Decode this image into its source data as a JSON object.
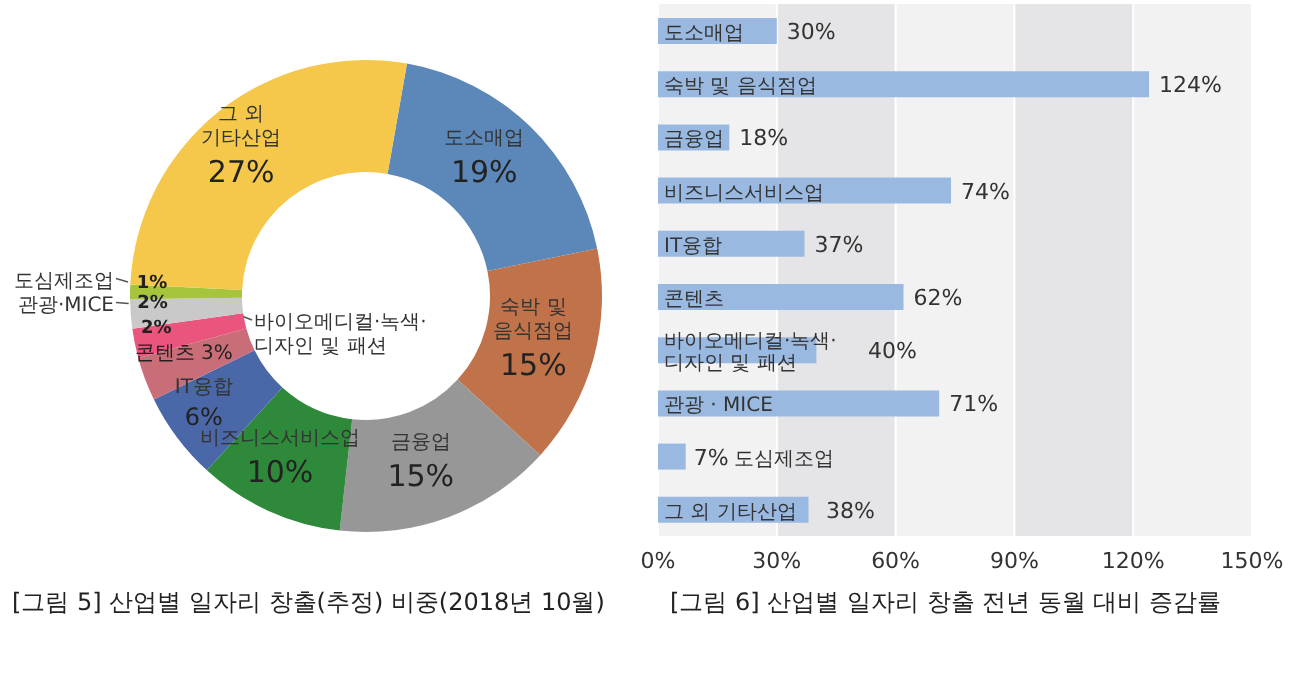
{
  "chart_data": [
    {
      "type": "donut",
      "title": "[그림 5]  산업별 일자리 창출(추정) 비중(2018년 10월)",
      "categories": [
        "도소매업",
        "숙박 및 음식점업",
        "금융업",
        "비즈니스서비스업",
        "IT융합",
        "콘텐츠",
        "바이오메디컬·녹색·디자인 및 패션",
        "관광·MICE",
        "도심제조업",
        "그 외 기타산업"
      ],
      "values": [
        19,
        15,
        15,
        10,
        6,
        3,
        2,
        2,
        1,
        27
      ],
      "value_labels": [
        "19%",
        "15%",
        "15%",
        "10%",
        "6%",
        "3%",
        "2%",
        "2%",
        "1%",
        "27%"
      ],
      "colors": [
        "#5b87b9",
        "#c0734a",
        "#979797",
        "#2e8a3a",
        "#4a67a8",
        "#c96e78",
        "#e9557d",
        "#c9c9c9",
        "#a6c43c",
        "#f5c84b"
      ],
      "legend": false
    },
    {
      "type": "bar",
      "orientation": "horizontal",
      "title": "[그림 6]  산업별 일자리 창출 전년 동월 대비 증감률",
      "categories": [
        "도소매업",
        "숙박 및 음식점업",
        "금융업",
        "비즈니스서비스업",
        "IT융합",
        "콘텐츠",
        "바이오메디컬·녹색·디자인 및 패션",
        "관광 · MICE",
        "도심제조업",
        "그 외 기타산업"
      ],
      "values": [
        30,
        124,
        18,
        74,
        37,
        62,
        40,
        71,
        7,
        38
      ],
      "value_labels": [
        "30%",
        "124%",
        "18%",
        "74%",
        "37%",
        "62%",
        "40%",
        "71%",
        "7%",
        "38%"
      ],
      "color": "#9ab9e1",
      "xlim": [
        0,
        150
      ],
      "xticks": [
        {
          "value": 0,
          "label": "0%"
        },
        {
          "value": 30,
          "label": "30%"
        },
        {
          "value": 60,
          "label": "60%"
        },
        {
          "value": 90,
          "label": "90%"
        },
        {
          "value": 120,
          "label": "120%"
        },
        {
          "value": 150,
          "label": "150%"
        }
      ],
      "grid": "x",
      "legend": false
    }
  ]
}
